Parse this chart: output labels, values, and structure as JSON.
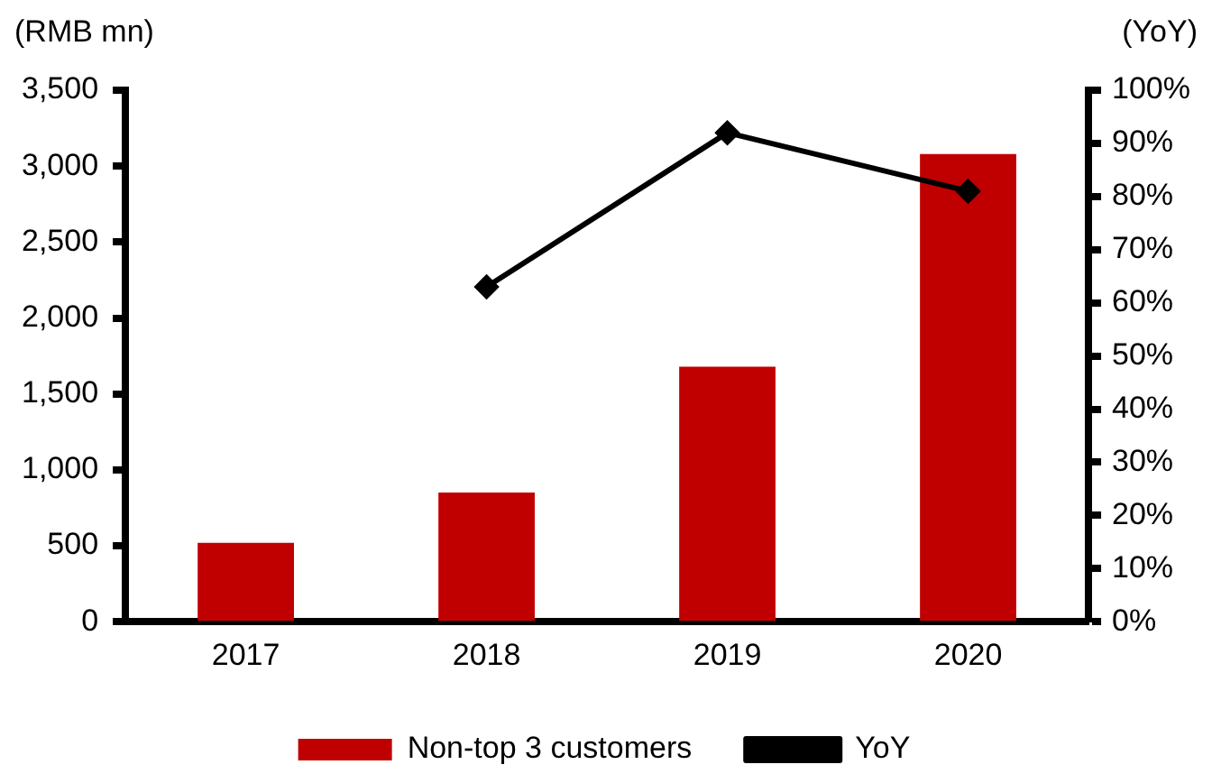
{
  "chart_data": {
    "type": "bar",
    "ylabel": "(RMB mn)",
    "y2label": "(YoY)",
    "categories": [
      "2017",
      "2018",
      "2019",
      "2020"
    ],
    "series": [
      {
        "name": "Non-top 3 customers",
        "color": "#c00000",
        "values": [
          520,
          850,
          1680,
          3080
        ]
      },
      {
        "name": "YoY",
        "type": "line",
        "axis": "y2",
        "color": "#000000",
        "marker": "diamond",
        "values": [
          null,
          63,
          92,
          81
        ]
      }
    ],
    "ylim": [
      0,
      3500
    ],
    "yticks": [
      {
        "value": 0,
        "label": "0"
      },
      {
        "value": 500,
        "label": "500"
      },
      {
        "value": 1000,
        "label": "1,000"
      },
      {
        "value": 1500,
        "label": "1,500"
      },
      {
        "value": 2000,
        "label": "2,000"
      },
      {
        "value": 2500,
        "label": "2,500"
      },
      {
        "value": 3000,
        "label": "3,000"
      },
      {
        "value": 3500,
        "label": "3,500"
      }
    ],
    "y2lim": [
      0,
      100
    ],
    "y2ticks": [
      {
        "value": 0,
        "label": "0%"
      },
      {
        "value": 10,
        "label": "10%"
      },
      {
        "value": 20,
        "label": "20%"
      },
      {
        "value": 30,
        "label": "30%"
      },
      {
        "value": 40,
        "label": "40%"
      },
      {
        "value": 50,
        "label": "50%"
      },
      {
        "value": 60,
        "label": "60%"
      },
      {
        "value": 70,
        "label": "70%"
      },
      {
        "value": 80,
        "label": "80%"
      },
      {
        "value": 90,
        "label": "90%"
      },
      {
        "value": 100,
        "label": "100%"
      }
    ],
    "grid": false,
    "legend": "bottom"
  }
}
